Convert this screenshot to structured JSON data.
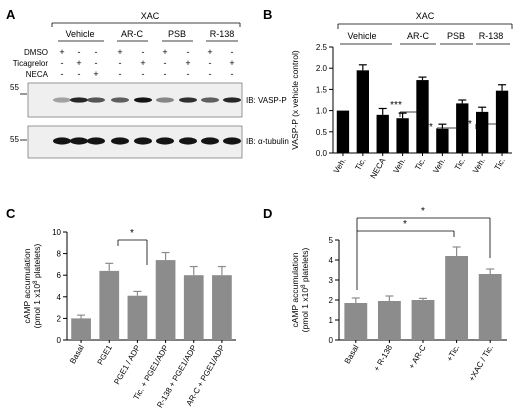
{
  "panels": {
    "a": {
      "letter": "A",
      "top_label": "XAC",
      "groups": [
        "Vehicle",
        "AR-C",
        "PSB",
        "R-138"
      ],
      "row_labels": [
        "DMSO",
        "Ticagrelor",
        "NECA"
      ],
      "signs": [
        [
          "+",
          "-",
          "-",
          "+",
          "-",
          "+",
          "-",
          "+",
          "-"
        ],
        [
          "-",
          "+",
          "-",
          "-",
          "+",
          "-",
          "+",
          "-",
          "+"
        ],
        [
          "-",
          "-",
          "+",
          "-",
          "-",
          "-",
          "-",
          "-",
          "-"
        ]
      ],
      "blots": [
        {
          "mw": "55",
          "label": "IB: VASP-P",
          "intensities": [
            0.2,
            0.85,
            0.6,
            0.55,
            0.95,
            0.35,
            0.8,
            0.55,
            0.85
          ]
        },
        {
          "mw": "55",
          "label": "IB: α-tubulin",
          "intensities": [
            0.95,
            0.95,
            0.95,
            0.95,
            0.95,
            0.95,
            0.95,
            0.95,
            0.95
          ]
        }
      ]
    },
    "b": {
      "letter": "B",
      "top_label": "XAC",
      "groups": [
        "Vehicle",
        "AR-C",
        "PSB",
        "R-138"
      ],
      "significance": [
        "***",
        "**",
        "*"
      ]
    },
    "c": {
      "letter": "C",
      "significance": [
        "*"
      ]
    },
    "d": {
      "letter": "D",
      "significance": [
        "*",
        "*"
      ]
    }
  },
  "chart_data": [
    {
      "panel": "B",
      "type": "bar",
      "categories": [
        "Veh.",
        "Tic.",
        "NECA",
        "Veh.",
        "Tic.",
        "Veh.",
        "Tic.",
        "Veh.",
        "Tic."
      ],
      "values": [
        1.0,
        1.95,
        0.9,
        0.82,
        1.72,
        0.57,
        1.17,
        0.97,
        1.47
      ],
      "errors": [
        0.0,
        0.13,
        0.15,
        0.12,
        0.07,
        0.11,
        0.08,
        0.11,
        0.14
      ],
      "ylabel": "VASP-P (x vehicle control)",
      "ylim": [
        0,
        2.5
      ],
      "yticks": [
        "0.0",
        "0.5",
        "1.0",
        "1.5",
        "2.0",
        "2.5"
      ],
      "bar_color": "#000000",
      "grid": false
    },
    {
      "panel": "C",
      "type": "bar",
      "categories": [
        "Basal",
        "PGE1",
        "PGE1 / ADP",
        "Tic. + PGE1/ADP",
        "R-138 + PGE1/ADP",
        "AR-C + PGE1/ADP"
      ],
      "values": [
        2.0,
        6.4,
        4.1,
        7.4,
        6.0,
        6.0
      ],
      "errors": [
        0.3,
        0.7,
        0.4,
        0.7,
        0.8,
        0.8
      ],
      "ylabel": "cAMP accumulation",
      "ylabel2": "(pmol 1 x10",
      "ylabel2_sup": "8",
      "ylabel2_end": " platelets)",
      "ylim": [
        0,
        10
      ],
      "yticks": [
        "0",
        "2",
        "4",
        "6",
        "8",
        "10"
      ],
      "bar_color": "#8c8c8c",
      "grid": false
    },
    {
      "panel": "D",
      "type": "bar",
      "categories": [
        "Basal",
        "+ R-138",
        "+ AR-C",
        "+Tic.",
        "+XAC / Tic."
      ],
      "values": [
        1.85,
        1.95,
        2.0,
        4.2,
        3.3
      ],
      "errors": [
        0.25,
        0.25,
        0.08,
        0.45,
        0.25
      ],
      "ylabel": "cAMP accumulation",
      "ylabel2": "(pmol 1 x10",
      "ylabel2_sup": "8",
      "ylabel2_end": " platelets)",
      "ylim": [
        0,
        5
      ],
      "yticks": [
        "0",
        "1",
        "2",
        "3",
        "4",
        "5"
      ],
      "bar_color": "#8c8c8c",
      "grid": false
    }
  ]
}
